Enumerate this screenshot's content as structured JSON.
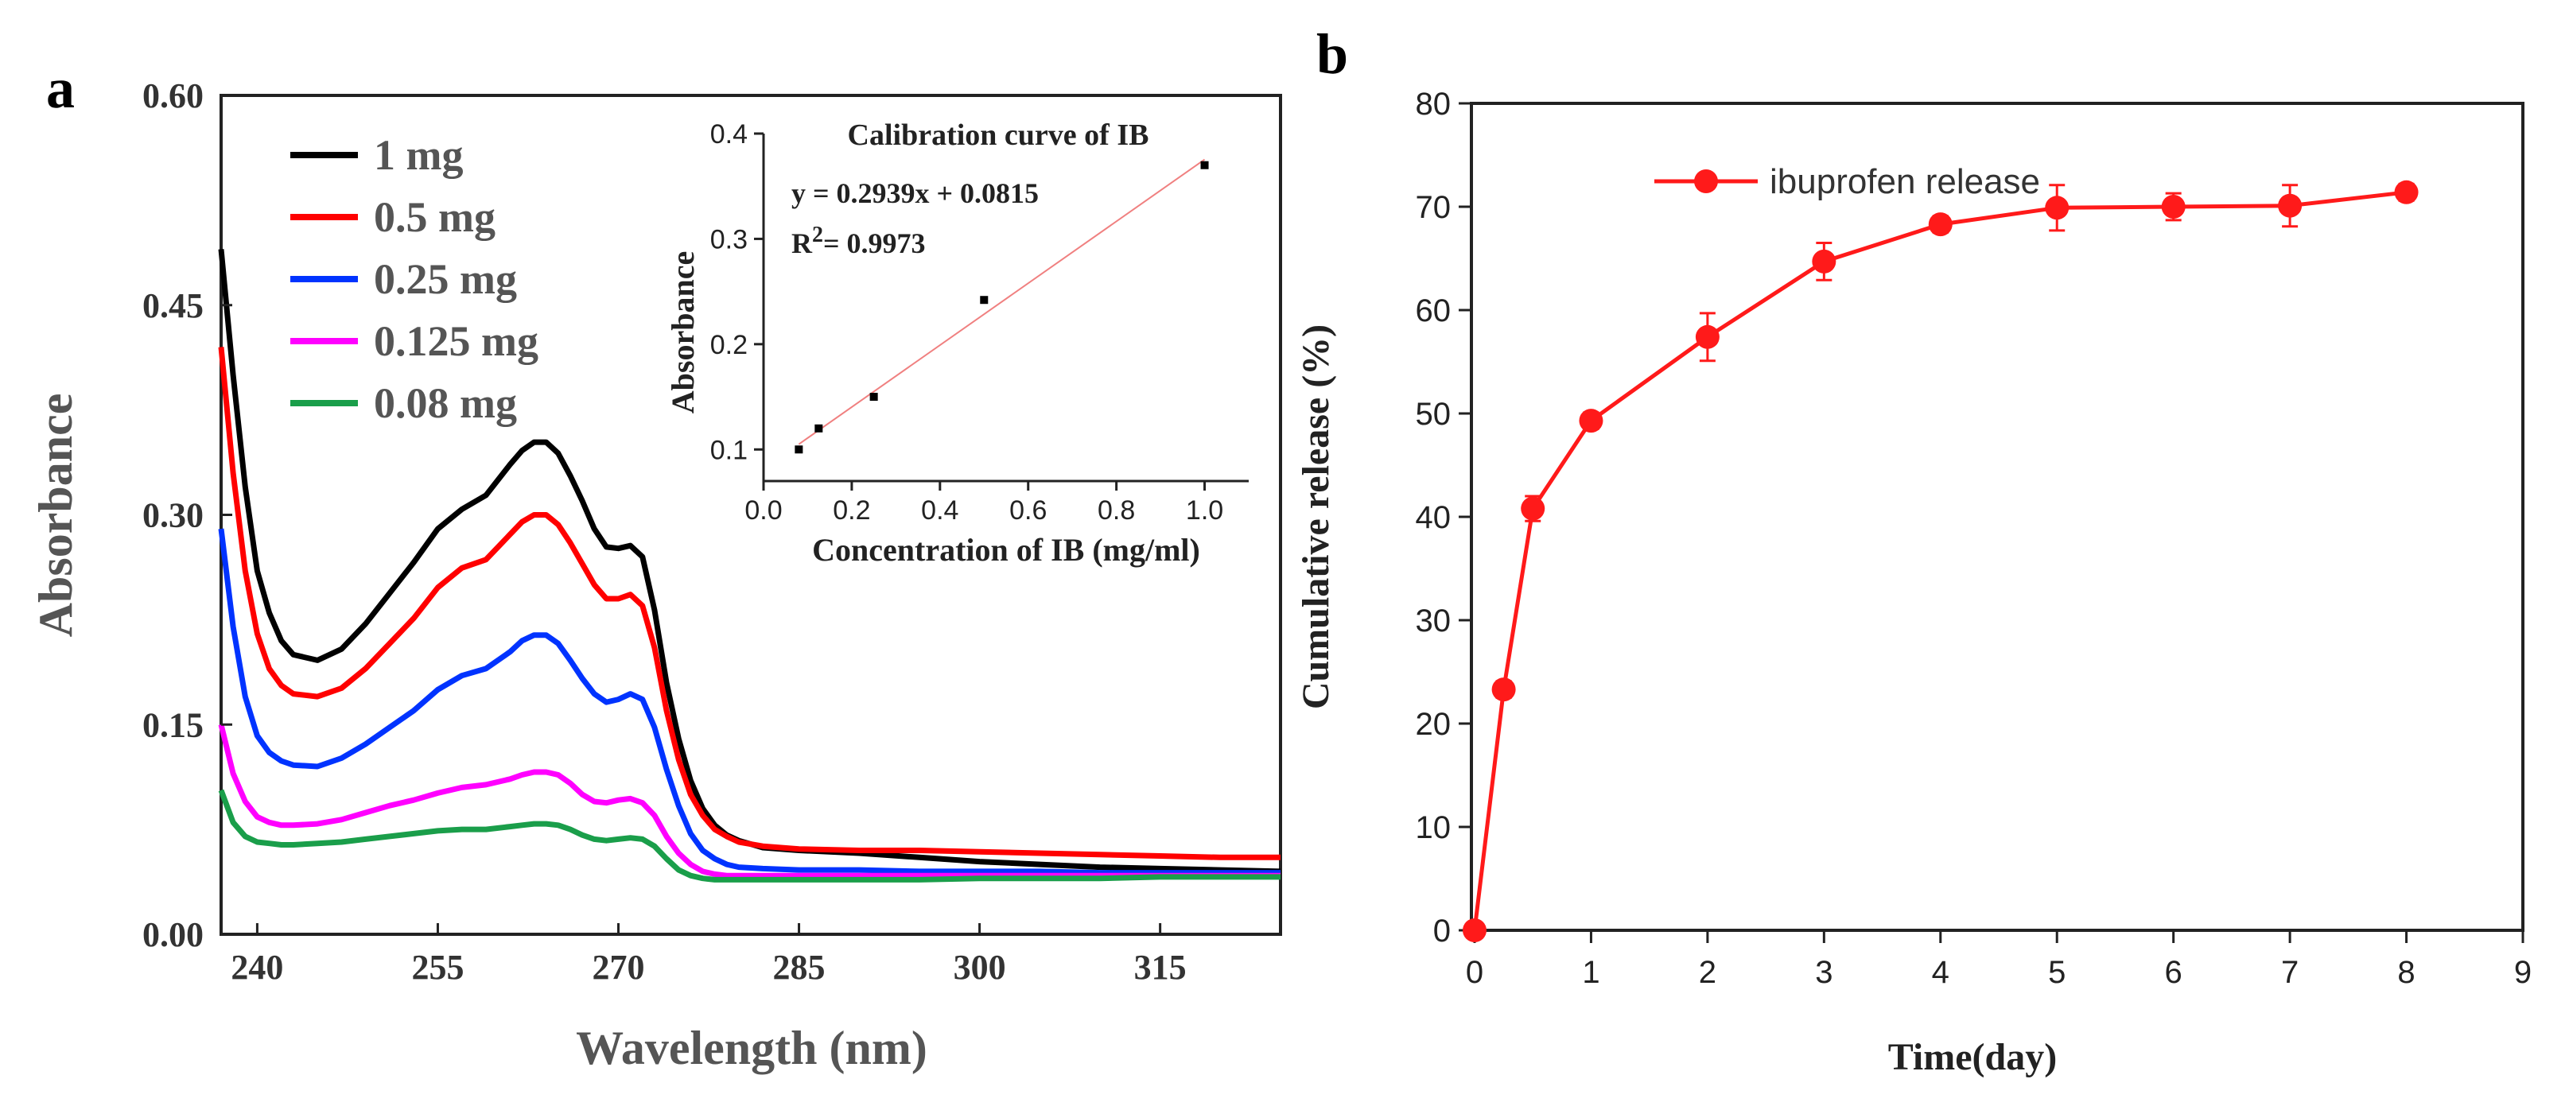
{
  "panel_a": {
    "label": "a",
    "chart_data": {
      "type": "line",
      "title": "",
      "xlabel": "Wavelength (nm)",
      "ylabel": "Absorbance",
      "xlim": [
        237,
        325
      ],
      "ylim": [
        0,
        0.6
      ],
      "x_ticks": [
        "240",
        "255",
        "270",
        "285",
        "300",
        "315"
      ],
      "y_ticks": [
        "0.00",
        "0.15",
        "0.30",
        "0.45",
        "0.60"
      ],
      "legend_position": "top-left",
      "series": [
        {
          "name": "1 mg",
          "color": "#000000",
          "x": [
            237,
            238,
            239,
            240,
            241,
            242,
            243,
            245,
            247,
            249,
            251,
            253,
            255,
            257,
            259,
            261,
            262,
            263,
            264,
            265,
            266,
            267,
            268,
            269,
            270,
            271,
            272,
            273,
            274,
            275,
            276,
            277,
            278,
            279,
            280,
            282,
            285,
            290,
            295,
            300,
            305,
            310,
            315,
            320,
            325
          ],
          "y": [
            0.49,
            0.4,
            0.32,
            0.26,
            0.23,
            0.21,
            0.2,
            0.196,
            0.204,
            0.222,
            0.244,
            0.266,
            0.29,
            0.304,
            0.314,
            0.336,
            0.346,
            0.352,
            0.352,
            0.344,
            0.328,
            0.31,
            0.29,
            0.277,
            0.276,
            0.278,
            0.27,
            0.232,
            0.18,
            0.14,
            0.11,
            0.09,
            0.078,
            0.071,
            0.067,
            0.062,
            0.06,
            0.058,
            0.055,
            0.052,
            0.05,
            0.048,
            0.047,
            0.046,
            0.045
          ]
        },
        {
          "name": "0.5 mg",
          "color": "#ff0000",
          "x": [
            237,
            238,
            239,
            240,
            241,
            242,
            243,
            245,
            247,
            249,
            251,
            253,
            255,
            257,
            259,
            261,
            262,
            263,
            264,
            265,
            266,
            267,
            268,
            269,
            270,
            271,
            272,
            273,
            274,
            275,
            276,
            277,
            278,
            279,
            280,
            282,
            285,
            290,
            295,
            300,
            305,
            310,
            315,
            320,
            325
          ],
          "y": [
            0.42,
            0.33,
            0.26,
            0.215,
            0.19,
            0.178,
            0.172,
            0.17,
            0.176,
            0.19,
            0.208,
            0.226,
            0.248,
            0.262,
            0.268,
            0.286,
            0.295,
            0.3,
            0.3,
            0.293,
            0.28,
            0.265,
            0.25,
            0.24,
            0.24,
            0.243,
            0.235,
            0.205,
            0.16,
            0.125,
            0.1,
            0.085,
            0.075,
            0.07,
            0.066,
            0.063,
            0.061,
            0.06,
            0.06,
            0.059,
            0.058,
            0.057,
            0.056,
            0.055,
            0.055
          ]
        },
        {
          "name": "0.25 mg",
          "color": "#0033ff",
          "x": [
            237,
            238,
            239,
            240,
            241,
            242,
            243,
            245,
            247,
            249,
            251,
            253,
            255,
            257,
            259,
            261,
            262,
            263,
            264,
            265,
            266,
            267,
            268,
            269,
            270,
            271,
            272,
            273,
            274,
            275,
            276,
            277,
            278,
            279,
            280,
            282,
            285,
            290,
            295,
            300,
            305,
            310,
            315,
            320,
            325
          ],
          "y": [
            0.29,
            0.22,
            0.17,
            0.142,
            0.13,
            0.124,
            0.121,
            0.12,
            0.126,
            0.136,
            0.148,
            0.16,
            0.175,
            0.185,
            0.19,
            0.202,
            0.21,
            0.214,
            0.214,
            0.208,
            0.196,
            0.183,
            0.172,
            0.166,
            0.168,
            0.172,
            0.168,
            0.148,
            0.118,
            0.092,
            0.072,
            0.06,
            0.054,
            0.05,
            0.048,
            0.047,
            0.046,
            0.046,
            0.045,
            0.045,
            0.045,
            0.044,
            0.044,
            0.044,
            0.044
          ]
        },
        {
          "name": "0.125 mg",
          "color": "#ff00ff",
          "x": [
            237,
            238,
            239,
            240,
            241,
            242,
            243,
            245,
            247,
            249,
            251,
            253,
            255,
            257,
            259,
            261,
            262,
            263,
            264,
            265,
            266,
            267,
            268,
            269,
            270,
            271,
            272,
            273,
            274,
            275,
            276,
            277,
            278,
            279,
            280,
            282,
            285,
            290,
            295,
            300,
            305,
            310,
            315,
            320,
            325
          ],
          "y": [
            0.15,
            0.115,
            0.095,
            0.084,
            0.08,
            0.078,
            0.078,
            0.079,
            0.082,
            0.087,
            0.092,
            0.096,
            0.101,
            0.105,
            0.107,
            0.111,
            0.114,
            0.116,
            0.116,
            0.114,
            0.108,
            0.1,
            0.095,
            0.094,
            0.096,
            0.097,
            0.094,
            0.085,
            0.07,
            0.058,
            0.05,
            0.045,
            0.043,
            0.042,
            0.042,
            0.042,
            0.042,
            0.042,
            0.042,
            0.042,
            0.042,
            0.042,
            0.042,
            0.042,
            0.042
          ]
        },
        {
          "name": "0.08 mg",
          "color": "#1a9e4a",
          "x": [
            237,
            238,
            239,
            240,
            241,
            242,
            243,
            245,
            247,
            249,
            251,
            253,
            255,
            257,
            259,
            261,
            262,
            263,
            264,
            265,
            266,
            267,
            268,
            269,
            270,
            271,
            272,
            273,
            274,
            275,
            276,
            277,
            278,
            279,
            280,
            282,
            285,
            290,
            295,
            300,
            305,
            310,
            315,
            320,
            325
          ],
          "y": [
            0.103,
            0.08,
            0.07,
            0.066,
            0.065,
            0.064,
            0.064,
            0.065,
            0.066,
            0.068,
            0.07,
            0.072,
            0.074,
            0.075,
            0.075,
            0.077,
            0.078,
            0.079,
            0.079,
            0.078,
            0.075,
            0.071,
            0.068,
            0.067,
            0.068,
            0.069,
            0.068,
            0.063,
            0.054,
            0.046,
            0.042,
            0.04,
            0.039,
            0.039,
            0.039,
            0.039,
            0.039,
            0.039,
            0.039,
            0.04,
            0.04,
            0.04,
            0.041,
            0.041,
            0.041
          ]
        }
      ]
    },
    "inset": {
      "chart_data": {
        "type": "scatter",
        "title": "Calibration curve of IB",
        "xlabel": "Concentration of IB (mg/ml)",
        "ylabel": "Absorbance",
        "equation": "y = 0.2939x + 0.0815",
        "r2_prefix": "R",
        "r2_sup": "2",
        "r2_value": "= 0.9973",
        "xlim": [
          0.0,
          1.1
        ],
        "ylim": [
          0.07,
          0.4
        ],
        "x_ticks": [
          "0.0",
          "0.2",
          "0.4",
          "0.6",
          "0.8",
          "1.0"
        ],
        "y_ticks": [
          "0.1",
          "0.2",
          "0.3",
          "0.4"
        ],
        "points": {
          "x": [
            0.08,
            0.125,
            0.25,
            0.5,
            1.0
          ],
          "y": [
            0.1,
            0.12,
            0.15,
            0.242,
            0.37
          ]
        },
        "fit": {
          "slope": 0.2939,
          "intercept": 0.0815,
          "x_range": [
            0.08,
            1.0
          ]
        },
        "point_color": "#000000",
        "fit_color": "#f08080"
      }
    }
  },
  "panel_b": {
    "label": "b",
    "chart_data": {
      "type": "line",
      "title": "",
      "xlabel": "Time(day)",
      "ylabel": "Cumulative release (%)",
      "xlim": [
        0,
        9
      ],
      "ylim": [
        0,
        80
      ],
      "x_ticks": [
        "0",
        "1",
        "2",
        "3",
        "4",
        "5",
        "6",
        "7",
        "8",
        "9"
      ],
      "y_ticks": [
        "0",
        "10",
        "20",
        "30",
        "40",
        "50",
        "60",
        "70",
        "80"
      ],
      "legend_position": "top-left",
      "series": [
        {
          "name": "ibuprofen release",
          "color": "#ff1a1a",
          "x": [
            0,
            0.25,
            0.5,
            1,
            2,
            3,
            4,
            5,
            6,
            7,
            8
          ],
          "y": [
            0,
            23.3,
            40.8,
            49.3,
            57.4,
            64.7,
            68.3,
            69.9,
            70.0,
            70.1,
            71.4
          ],
          "err": [
            0,
            0.8,
            1.2,
            0.8,
            2.3,
            1.8,
            0.8,
            2.2,
            1.3,
            2.0,
            0.8
          ]
        }
      ]
    }
  }
}
